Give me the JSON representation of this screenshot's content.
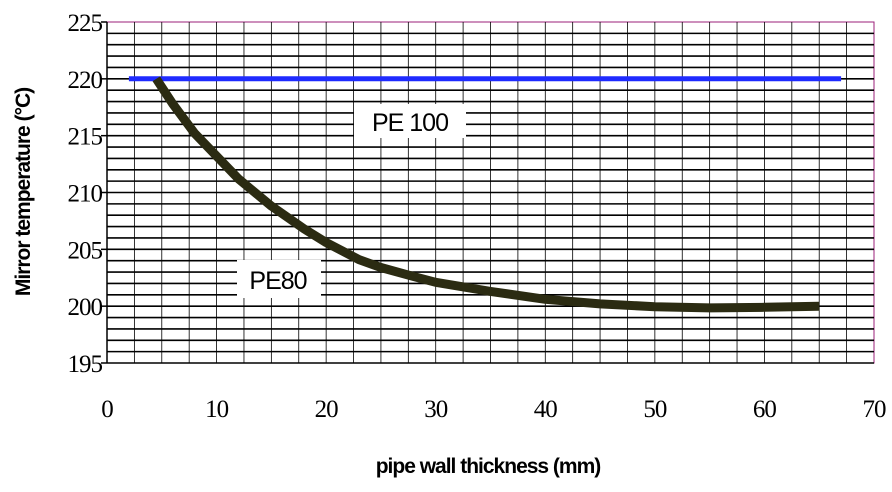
{
  "chart_data": {
    "type": "line",
    "title": "",
    "xlabel": "pipe wall thickness  (mm)",
    "ylabel": "Mirror temperature (°C)",
    "xlim": [
      0,
      70
    ],
    "ylim": [
      195,
      225
    ],
    "x_ticks": [
      "0",
      "10",
      "20",
      "30",
      "40",
      "50",
      "60",
      "70"
    ],
    "y_ticks": [
      "195",
      "200",
      "205",
      "210",
      "215",
      "220",
      "225"
    ],
    "grid": true,
    "legend": "none",
    "series": [
      {
        "name": "PE 100",
        "color": "#1f2bff",
        "x": [
          2,
          67
        ],
        "y": [
          220,
          220
        ]
      },
      {
        "name": "PE80",
        "color": "#2b2b12",
        "x": [
          4.5,
          6,
          8,
          10,
          12,
          15,
          18,
          20,
          23,
          25,
          28,
          30,
          35,
          40,
          45,
          50,
          55,
          60,
          65
        ],
        "y": [
          220,
          217.8,
          215.2,
          213.2,
          211.2,
          208.8,
          206.8,
          205.6,
          204.1,
          203.4,
          202.6,
          202.1,
          201.3,
          200.6,
          200.2,
          199.95,
          199.85,
          199.9,
          200
        ]
      }
    ]
  }
}
